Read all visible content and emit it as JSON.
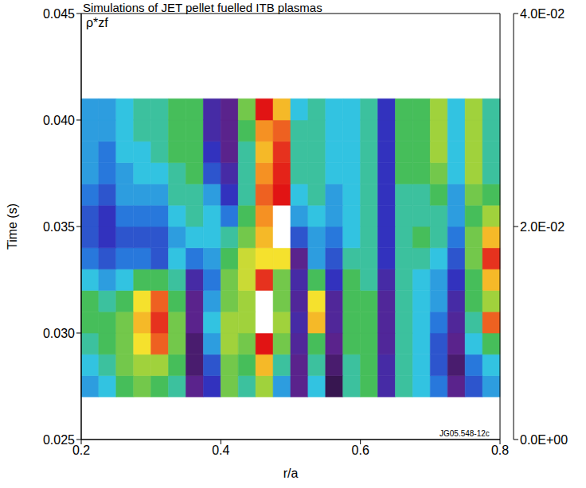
{
  "chart_data": {
    "type": "heatmap",
    "title": "Simulations of JET pellet fuelled ITB plasmas",
    "x_label": "r/a",
    "y_label": "Time (s)",
    "annotations": [
      "ρ*zf",
      "JG05.548-12c"
    ],
    "xlim": [
      0.2,
      0.8
    ],
    "xticks": [
      0.2,
      0.4,
      0.6,
      0.8
    ],
    "ylim": [
      0.025,
      0.045
    ],
    "yticks": [
      0.025,
      {
        "value": 0.03,
        "label": "0.030"
      },
      0.035,
      {
        "value": 0.04,
        "label": "0.040"
      },
      0.045
    ],
    "x_edges": [
      0.2,
      0.225,
      0.25,
      0.275,
      0.3,
      0.325,
      0.35,
      0.375,
      0.4,
      0.425,
      0.45,
      0.475,
      0.5,
      0.525,
      0.55,
      0.575,
      0.6,
      0.625,
      0.65,
      0.675,
      0.7,
      0.725,
      0.75,
      0.775,
      0.8
    ],
    "y_edges": [
      0.027,
      0.028,
      0.029,
      0.03,
      0.031,
      0.032,
      0.033,
      0.034,
      0.035,
      0.036,
      0.037,
      0.038,
      0.039,
      0.04,
      0.041
    ],
    "z": [
      [
        0.014,
        0.016,
        0.02,
        0.022,
        0.02,
        0.018,
        0.004,
        0.008,
        0.022,
        0.018,
        0.024,
        0.014,
        0.004,
        0.016,
        0.002,
        0.018,
        0.02,
        0.006,
        0.018,
        0.016,
        0.012,
        0.004,
        0.01,
        0.014
      ],
      [
        0.016,
        0.018,
        0.022,
        0.024,
        0.024,
        0.02,
        0.003,
        0.01,
        0.022,
        0.02,
        0.03,
        0.018,
        0.004,
        0.018,
        0.003,
        0.018,
        0.02,
        0.006,
        0.018,
        0.016,
        0.01,
        0.003,
        0.012,
        0.016
      ],
      [
        0.018,
        0.02,
        0.022,
        0.028,
        0.034,
        0.022,
        0.003,
        0.014,
        0.024,
        0.022,
        0.04,
        0.022,
        0.005,
        0.02,
        0.004,
        0.02,
        0.02,
        0.005,
        0.018,
        0.016,
        0.01,
        0.004,
        0.016,
        0.02
      ],
      [
        0.02,
        0.02,
        0.022,
        0.03,
        0.036,
        0.022,
        0.004,
        0.016,
        0.024,
        0.024,
        0.045,
        0.024,
        0.006,
        0.03,
        0.005,
        0.02,
        0.02,
        0.005,
        0.018,
        0.016,
        0.012,
        0.005,
        0.018,
        0.034
      ],
      [
        0.02,
        0.018,
        0.02,
        0.028,
        0.034,
        0.02,
        0.004,
        0.014,
        0.022,
        0.024,
        0.045,
        0.022,
        0.005,
        0.028,
        0.005,
        0.02,
        0.02,
        0.005,
        0.018,
        0.016,
        0.014,
        0.006,
        0.02,
        0.024
      ],
      [
        0.016,
        0.014,
        0.016,
        0.02,
        0.02,
        0.018,
        0.006,
        0.012,
        0.022,
        0.026,
        0.036,
        0.022,
        0.006,
        0.02,
        0.008,
        0.02,
        0.018,
        0.006,
        0.018,
        0.016,
        0.014,
        0.008,
        0.02,
        0.03
      ],
      [
        0.012,
        0.01,
        0.012,
        0.012,
        0.01,
        0.016,
        0.012,
        0.014,
        0.02,
        0.026,
        0.028,
        0.028,
        0.004,
        0.014,
        0.01,
        0.018,
        0.018,
        0.008,
        0.018,
        0.018,
        0.016,
        0.01,
        0.022,
        0.036
      ],
      [
        0.01,
        0.008,
        0.01,
        0.01,
        0.01,
        0.014,
        0.016,
        0.016,
        0.018,
        0.022,
        0.03,
        0.045,
        0.01,
        0.014,
        0.012,
        0.016,
        0.018,
        0.008,
        0.018,
        0.02,
        0.018,
        0.012,
        0.022,
        0.03
      ],
      [
        0.01,
        0.008,
        0.012,
        0.012,
        0.012,
        0.016,
        0.018,
        0.016,
        0.012,
        0.02,
        0.032,
        0.045,
        0.014,
        0.016,
        0.014,
        0.016,
        0.018,
        0.008,
        0.018,
        0.018,
        0.018,
        0.014,
        0.02,
        0.024
      ],
      [
        0.012,
        0.01,
        0.014,
        0.014,
        0.014,
        0.018,
        0.018,
        0.014,
        0.008,
        0.018,
        0.034,
        0.04,
        0.016,
        0.018,
        0.014,
        0.016,
        0.018,
        0.008,
        0.018,
        0.018,
        0.02,
        0.014,
        0.022,
        0.02
      ],
      [
        0.014,
        0.012,
        0.014,
        0.016,
        0.016,
        0.018,
        0.02,
        0.01,
        0.006,
        0.018,
        0.032,
        0.038,
        0.018,
        0.018,
        0.016,
        0.016,
        0.018,
        0.008,
        0.02,
        0.02,
        0.022,
        0.016,
        0.024,
        0.018
      ],
      [
        0.014,
        0.012,
        0.016,
        0.016,
        0.018,
        0.02,
        0.02,
        0.008,
        0.004,
        0.018,
        0.03,
        0.036,
        0.018,
        0.018,
        0.016,
        0.016,
        0.018,
        0.008,
        0.02,
        0.02,
        0.024,
        0.016,
        0.024,
        0.018
      ],
      [
        0.014,
        0.014,
        0.016,
        0.018,
        0.018,
        0.02,
        0.02,
        0.006,
        0.004,
        0.02,
        0.032,
        0.034,
        0.018,
        0.018,
        0.016,
        0.016,
        0.018,
        0.008,
        0.02,
        0.02,
        0.024,
        0.016,
        0.024,
        0.018
      ],
      [
        0.014,
        0.014,
        0.016,
        0.018,
        0.018,
        0.02,
        0.02,
        0.006,
        0.004,
        0.022,
        0.04,
        0.03,
        0.016,
        0.018,
        0.016,
        0.016,
        0.018,
        0.008,
        0.02,
        0.02,
        0.024,
        0.016,
        0.024,
        0.018
      ]
    ],
    "colorbar": {
      "range": [
        0,
        0.04
      ],
      "ticks": [
        {
          "value": 0,
          "label": "0.0E+00"
        },
        {
          "value": 0.02,
          "label": "2.0E-02"
        },
        {
          "value": 0.04,
          "label": "4.0E-02"
        }
      ]
    }
  }
}
